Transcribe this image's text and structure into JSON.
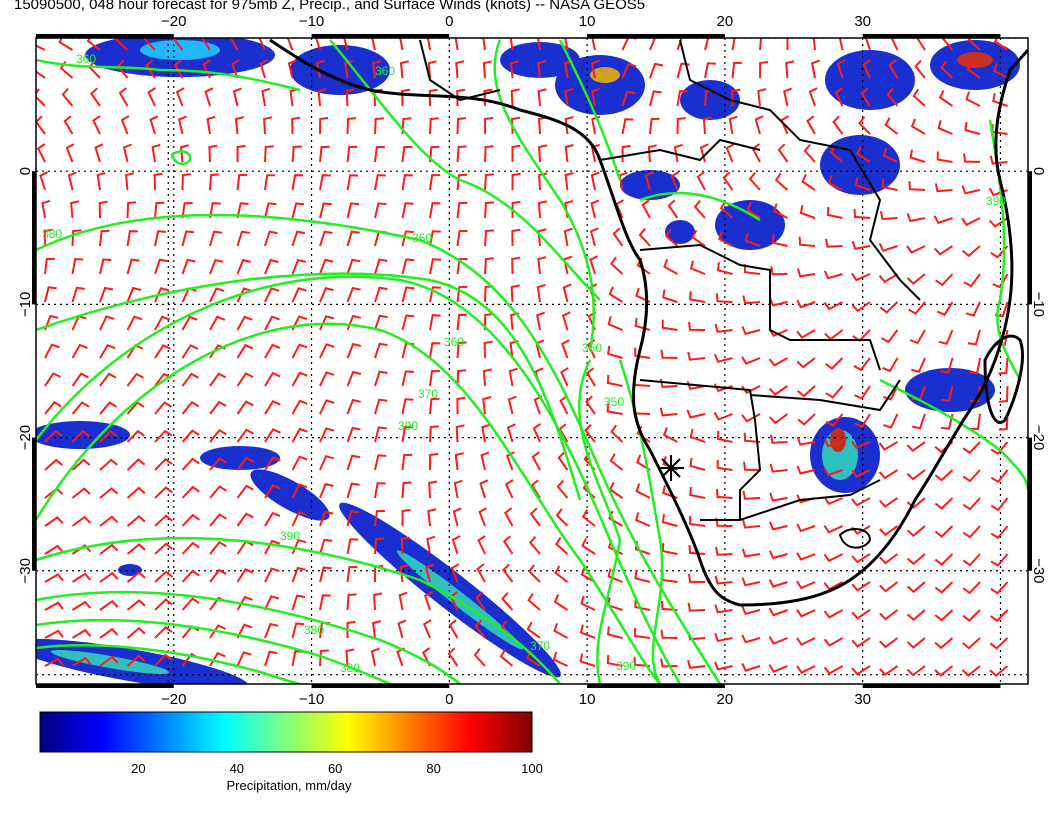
{
  "title": "15090500, 048 hour forecast for 975mb Z, Precip., and Surface Winds (knots) -- NASA GEOS5",
  "map": {
    "lon_range": [
      -30,
      42
    ],
    "lat_range": [
      -38.5,
      10
    ],
    "x_tick_labels": [
      "−20",
      "−10",
      "0",
      "10",
      "20",
      "30"
    ],
    "x_tick_values": [
      -20,
      -10,
      0,
      10,
      20,
      30
    ],
    "y_tick_labels": [
      "0",
      "−10",
      "−20",
      "−30"
    ],
    "y_tick_values": [
      0,
      -10,
      -20,
      -30
    ],
    "grid": "dotted",
    "colors": {
      "barbs": "#ff1a1a",
      "contours": "#22ee22",
      "coast": "#000000"
    },
    "contour_labels": [
      "360",
      "350",
      "360",
      "360",
      "370",
      "350",
      "380",
      "390",
      "370",
      "390",
      "380",
      "380",
      "390",
      "390",
      "360"
    ],
    "station_marker": "asterisk-icon"
  },
  "colorbar": {
    "ticks": [
      "20",
      "40",
      "60",
      "80",
      "100"
    ],
    "tick_values": [
      20,
      40,
      60,
      80,
      100
    ],
    "range": [
      0,
      100
    ],
    "label": "Precipitation, mm/day",
    "colors": [
      "#00007f",
      "#0000ff",
      "#007fff",
      "#00ffff",
      "#7fff7f",
      "#ffff00",
      "#ff7f00",
      "#ff0000",
      "#7f0000"
    ]
  }
}
